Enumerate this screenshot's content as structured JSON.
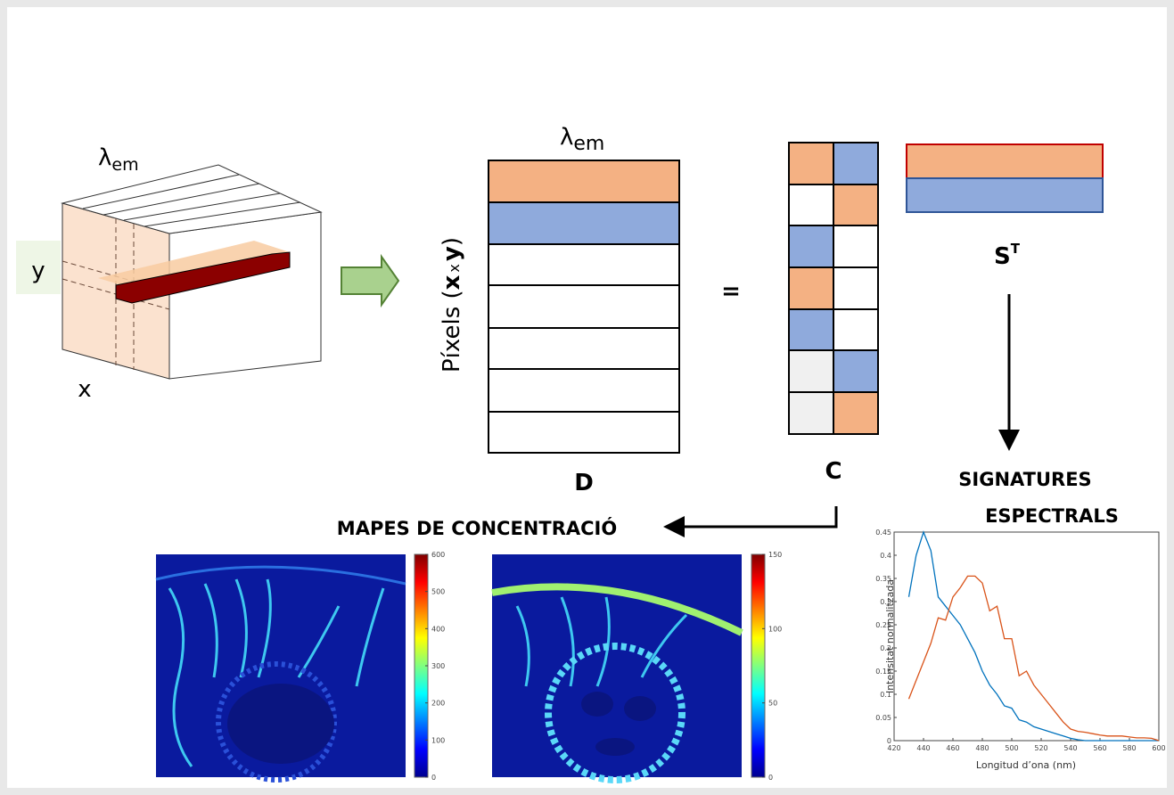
{
  "diagram": {
    "cube_lambda": {
      "symbol": "λ",
      "subscript": "em"
    },
    "cube_y": "y",
    "cube_x": "x",
    "matrix_lambda": {
      "symbol": "λ",
      "subscript": "em"
    },
    "pixels_label": [
      "Píxels (",
      "x",
      "x",
      "y",
      ")"
    ],
    "equals": "=",
    "matrix_d": "D",
    "matrix_c": "C",
    "matrix_s": {
      "symbol": "S",
      "superscript": "T"
    },
    "signatures_title": [
      "SIGNATURES",
      "ESPECTRALS"
    ],
    "maps_title": "MAPES DE CONCENTRACIÓ",
    "colorbars": [
      {
        "clim": [
          0,
          600
        ],
        "ticks": [
          0,
          100,
          200,
          300,
          400,
          500,
          600
        ]
      },
      {
        "clim": [
          0,
          150
        ],
        "ticks": [
          0,
          50,
          100,
          150
        ]
      }
    ]
  },
  "chart_data": {
    "type": "line",
    "xlabel": "Longitud d’ona (nm)",
    "ylabel": "Intensitat normalitzada",
    "x": [
      430,
      435,
      440,
      445,
      450,
      455,
      460,
      465,
      470,
      475,
      480,
      485,
      490,
      495,
      500,
      505,
      510,
      515,
      520,
      525,
      530,
      535,
      540,
      545,
      550,
      555,
      560,
      565,
      570,
      575,
      580,
      585,
      590,
      595,
      600
    ],
    "series": [
      {
        "color": "#0072bd",
        "values": [
          0.31,
          0.4,
          0.45,
          0.41,
          0.31,
          0.29,
          0.27,
          0.25,
          0.22,
          0.19,
          0.15,
          0.12,
          0.1,
          0.075,
          0.07,
          0.045,
          0.04,
          0.03,
          0.025,
          0.02,
          0.015,
          0.01,
          0.005,
          0.002,
          0,
          0,
          0,
          0,
          0,
          0,
          0,
          0,
          0,
          0,
          0
        ]
      },
      {
        "color": "#d95319",
        "values": [
          0.09,
          0.13,
          0.17,
          0.21,
          0.265,
          0.26,
          0.31,
          0.33,
          0.355,
          0.355,
          0.34,
          0.28,
          0.29,
          0.22,
          0.22,
          0.14,
          0.15,
          0.12,
          0.1,
          0.08,
          0.06,
          0.04,
          0.025,
          0.02,
          0.018,
          0.015,
          0.012,
          0.01,
          0.01,
          0.01,
          0.008,
          0.006,
          0.006,
          0.005,
          0
        ]
      }
    ],
    "xlim": [
      420,
      600
    ],
    "ylim": [
      0,
      0.45
    ],
    "xticks": [
      420,
      440,
      460,
      480,
      500,
      520,
      540,
      560,
      580,
      600
    ],
    "yticks": [
      0,
      0.05,
      0.1,
      0.15,
      0.2,
      0.25,
      0.3,
      0.35,
      0.4,
      0.45
    ]
  }
}
